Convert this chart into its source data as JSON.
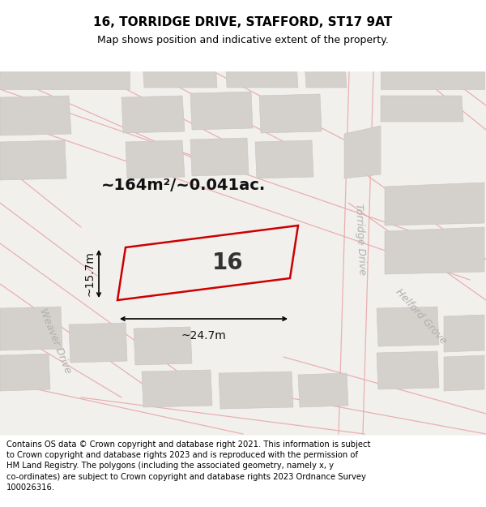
{
  "title": "16, TORRIDGE DRIVE, STAFFORD, ST17 9AT",
  "subtitle": "Map shows position and indicative extent of the property.",
  "footer": "Contains OS data © Crown copyright and database right 2021. This information is subject\nto Crown copyright and database rights 2023 and is reproduced with the permission of\nHM Land Registry. The polygons (including the associated geometry, namely x, y\nco-ordinates) are subject to Crown copyright and database rights 2023 Ordnance Survey\n100026316.",
  "area_label": "~164m²/~0.041ac.",
  "width_label": "~24.7m",
  "height_label": "~15.7m",
  "plot_number": "16",
  "map_bg": "#f2f0ed",
  "building_fill": "#d4d0cc",
  "building_edge": "#c8c4c0",
  "road_line_color": "#e8b0b0",
  "plot_outline_color": "#cc0000",
  "street_label_color": "#b0b0b0",
  "title_fontsize": 11,
  "subtitle_fontsize": 9,
  "footer_fontsize": 7.2,
  "annotation_fontsize": 10,
  "area_fontsize": 14,
  "plot_num_fontsize": 20
}
